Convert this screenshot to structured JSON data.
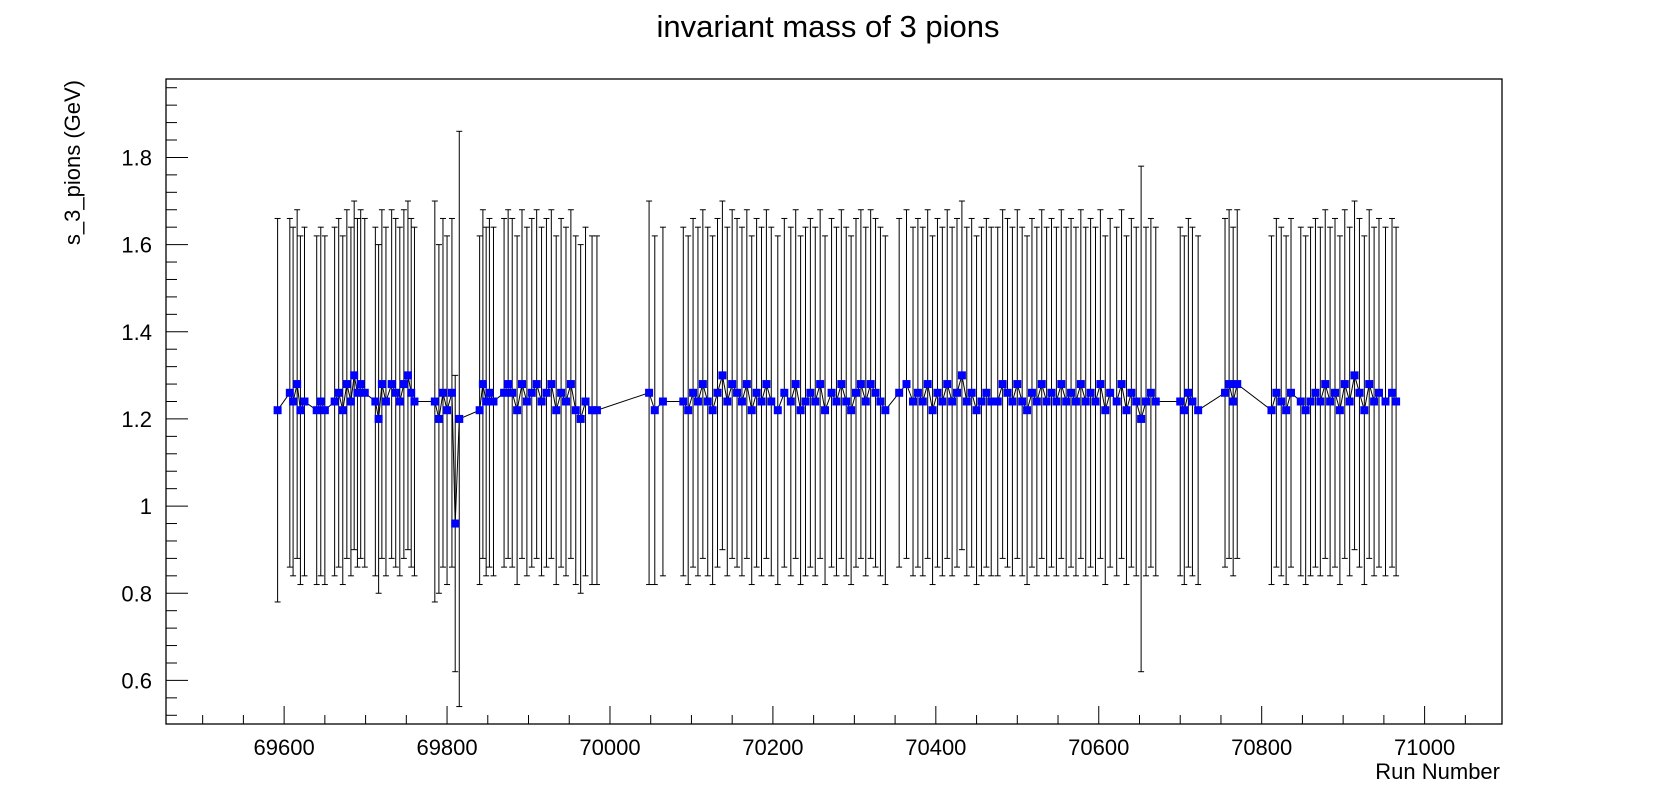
{
  "chart_data": {
    "type": "scatter",
    "title": "invariant mass of 3 pions",
    "xlabel": "Run Number",
    "ylabel": "s_3_pions (GeV)",
    "xlim": [
      69455,
      71095
    ],
    "ylim": [
      0.5,
      1.98
    ],
    "x_ticks": [
      69600,
      69800,
      70000,
      70200,
      70400,
      70600,
      70800,
      71000
    ],
    "y_ticks": [
      0.6,
      0.8,
      1,
      1.2,
      1.4,
      1.6,
      1.8
    ],
    "grid": false,
    "legend": "none",
    "marker_color": "#0000ff",
    "errorbar_color": "#000000",
    "series": [
      {
        "x": [
          69592,
          69607,
          69611,
          69616,
          69620,
          69625,
          69640,
          69645,
          69650,
          69662,
          69667,
          69672,
          69677,
          69682,
          69686,
          69690,
          69694,
          69699,
          69712,
          69716,
          69720,
          69725,
          69732,
          69737,
          69742,
          69747,
          69752,
          69756,
          69760,
          69785,
          69790,
          69795,
          69800,
          69806,
          69810,
          69815,
          69840,
          69844,
          69848,
          69852,
          69857,
          69870,
          69875,
          69880,
          69886,
          69892,
          69898,
          69904,
          69910,
          69916,
          69922,
          69928,
          69934,
          69940,
          69946,
          69952,
          69958,
          69964,
          69970,
          69978,
          69984,
          70048,
          70055,
          70065,
          70090,
          70096,
          70102,
          70108,
          70114,
          70120,
          70126,
          70132,
          70138,
          70144,
          70150,
          70156,
          70162,
          70168,
          70174,
          70180,
          70186,
          70192,
          70198,
          70206,
          70214,
          70222,
          70228,
          70234,
          70240,
          70246,
          70252,
          70258,
          70264,
          70272,
          70278,
          70284,
          70290,
          70296,
          70302,
          70308,
          70314,
          70320,
          70326,
          70332,
          70338,
          70355,
          70364,
          70372,
          70378,
          70384,
          70390,
          70396,
          70402,
          70408,
          70414,
          70420,
          70426,
          70432,
          70438,
          70444,
          70450,
          70456,
          70462,
          70468,
          70476,
          70482,
          70488,
          70494,
          70500,
          70506,
          70512,
          70518,
          70524,
          70530,
          70536,
          70542,
          70548,
          70554,
          70560,
          70566,
          70572,
          70578,
          70584,
          70590,
          70596,
          70602,
          70608,
          70614,
          70622,
          70628,
          70634,
          70640,
          70646,
          70652,
          70658,
          70664,
          70670,
          70700,
          70705,
          70710,
          70715,
          70722,
          70755,
          70760,
          70765,
          70770,
          70812,
          70818,
          70824,
          70830,
          70836,
          70848,
          70854,
          70860,
          70866,
          70872,
          70878,
          70884,
          70890,
          70896,
          70902,
          70908,
          70914,
          70920,
          70926,
          70932,
          70938,
          70944,
          70952,
          70960,
          70965
        ],
        "y": [
          1.22,
          1.26,
          1.24,
          1.28,
          1.22,
          1.24,
          1.22,
          1.24,
          1.22,
          1.24,
          1.26,
          1.22,
          1.28,
          1.24,
          1.3,
          1.26,
          1.28,
          1.26,
          1.24,
          1.2,
          1.28,
          1.24,
          1.28,
          1.26,
          1.24,
          1.28,
          1.3,
          1.26,
          1.24,
          1.24,
          1.2,
          1.26,
          1.22,
          1.26,
          0.96,
          1.2,
          1.22,
          1.28,
          1.24,
          1.26,
          1.24,
          1.26,
          1.28,
          1.26,
          1.22,
          1.28,
          1.24,
          1.26,
          1.28,
          1.24,
          1.26,
          1.28,
          1.22,
          1.26,
          1.24,
          1.28,
          1.22,
          1.2,
          1.24,
          1.22,
          1.22,
          1.26,
          1.22,
          1.24,
          1.24,
          1.22,
          1.26,
          1.24,
          1.28,
          1.24,
          1.22,
          1.26,
          1.3,
          1.24,
          1.28,
          1.26,
          1.24,
          1.28,
          1.22,
          1.26,
          1.24,
          1.28,
          1.24,
          1.22,
          1.26,
          1.24,
          1.28,
          1.22,
          1.24,
          1.26,
          1.24,
          1.28,
          1.22,
          1.26,
          1.24,
          1.28,
          1.24,
          1.22,
          1.26,
          1.28,
          1.24,
          1.28,
          1.26,
          1.24,
          1.22,
          1.26,
          1.28,
          1.24,
          1.26,
          1.24,
          1.28,
          1.22,
          1.26,
          1.24,
          1.28,
          1.24,
          1.26,
          1.3,
          1.24,
          1.26,
          1.22,
          1.24,
          1.26,
          1.24,
          1.24,
          1.28,
          1.26,
          1.24,
          1.28,
          1.24,
          1.22,
          1.26,
          1.24,
          1.28,
          1.24,
          1.26,
          1.24,
          1.28,
          1.24,
          1.26,
          1.24,
          1.28,
          1.24,
          1.26,
          1.24,
          1.28,
          1.22,
          1.26,
          1.24,
          1.28,
          1.22,
          1.26,
          1.24,
          1.2,
          1.24,
          1.26,
          1.24,
          1.24,
          1.22,
          1.26,
          1.24,
          1.22,
          1.26,
          1.28,
          1.24,
          1.28,
          1.22,
          1.26,
          1.24,
          1.22,
          1.26,
          1.24,
          1.22,
          1.24,
          1.26,
          1.24,
          1.28,
          1.24,
          1.26,
          1.22,
          1.28,
          1.24,
          1.3,
          1.26,
          1.22,
          1.28,
          1.24,
          1.26,
          1.24,
          1.26,
          1.24
        ],
        "err": [
          0.44,
          0.4,
          0.4,
          0.4,
          0.4,
          0.4,
          0.4,
          0.4,
          0.4,
          0.4,
          0.4,
          0.4,
          0.4,
          0.4,
          0.4,
          0.4,
          0.4,
          0.4,
          0.4,
          0.4,
          0.4,
          0.4,
          0.4,
          0.4,
          0.4,
          0.4,
          0.4,
          0.4,
          0.4,
          0.46,
          0.4,
          0.4,
          0.4,
          0.4,
          0.34,
          0.66,
          0.4,
          0.4,
          0.4,
          0.4,
          0.4,
          0.4,
          0.4,
          0.4,
          0.4,
          0.4,
          0.4,
          0.4,
          0.4,
          0.4,
          0.4,
          0.4,
          0.4,
          0.4,
          0.4,
          0.4,
          0.4,
          0.4,
          0.4,
          0.4,
          0.4,
          0.44,
          0.4,
          0.4,
          0.4,
          0.4,
          0.4,
          0.4,
          0.4,
          0.4,
          0.4,
          0.4,
          0.4,
          0.4,
          0.4,
          0.4,
          0.4,
          0.4,
          0.4,
          0.4,
          0.4,
          0.4,
          0.4,
          0.4,
          0.4,
          0.4,
          0.4,
          0.4,
          0.4,
          0.4,
          0.4,
          0.4,
          0.4,
          0.4,
          0.4,
          0.4,
          0.4,
          0.4,
          0.4,
          0.4,
          0.4,
          0.4,
          0.4,
          0.4,
          0.4,
          0.4,
          0.4,
          0.4,
          0.4,
          0.4,
          0.4,
          0.4,
          0.4,
          0.4,
          0.4,
          0.4,
          0.4,
          0.4,
          0.4,
          0.4,
          0.4,
          0.4,
          0.4,
          0.4,
          0.4,
          0.4,
          0.4,
          0.4,
          0.4,
          0.4,
          0.4,
          0.4,
          0.4,
          0.4,
          0.4,
          0.4,
          0.4,
          0.4,
          0.4,
          0.4,
          0.4,
          0.4,
          0.4,
          0.4,
          0.4,
          0.4,
          0.4,
          0.4,
          0.4,
          0.4,
          0.4,
          0.4,
          0.4,
          0.58,
          0.4,
          0.4,
          0.4,
          0.4,
          0.4,
          0.4,
          0.4,
          0.4,
          0.4,
          0.4,
          0.4,
          0.4,
          0.4,
          0.4,
          0.4,
          0.4,
          0.4,
          0.4,
          0.4,
          0.4,
          0.4,
          0.4,
          0.4,
          0.4,
          0.4,
          0.4,
          0.4,
          0.4,
          0.4,
          0.4,
          0.4,
          0.4,
          0.4,
          0.4,
          0.4,
          0.4,
          0.4
        ]
      }
    ]
  }
}
